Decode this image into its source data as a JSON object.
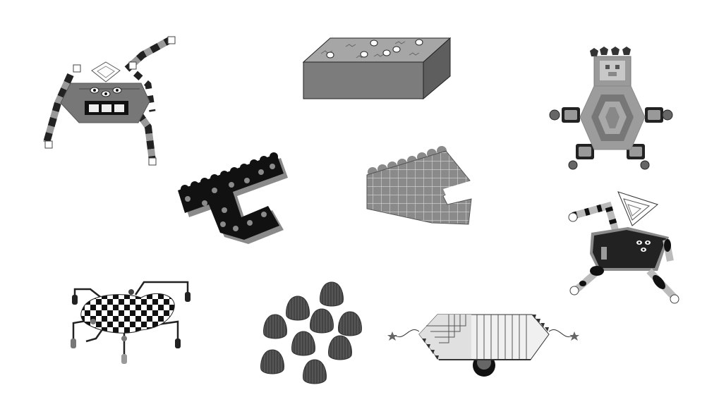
{
  "figures": [
    {
      "id": "spider-robot",
      "kind": "creature"
    },
    {
      "id": "speckled-block",
      "kind": "object"
    },
    {
      "id": "teddy-robot",
      "kind": "creature"
    },
    {
      "id": "dotted-jaw-creature",
      "kind": "creature"
    },
    {
      "id": "grid-jaw-creature",
      "kind": "creature"
    },
    {
      "id": "walking-robot",
      "kind": "creature"
    },
    {
      "id": "checkered-bug",
      "kind": "creature"
    },
    {
      "id": "egg-cluster",
      "kind": "object",
      "count": 9
    },
    {
      "id": "wheeled-cart",
      "kind": "object"
    }
  ],
  "palette": {
    "dark": "#1a1a1a",
    "mid": "#7a7a7a",
    "light": "#bdbdbd",
    "pale": "#e6e6e6",
    "outline": "#111111"
  }
}
